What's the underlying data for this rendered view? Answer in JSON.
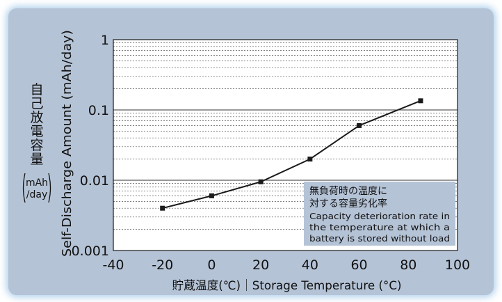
{
  "chart_data": {
    "type": "line",
    "xlabel": "貯蔵温度(℃)｜Storage Temperature (°C)",
    "ylabel_en": "Self-Discharge Amount (mAh/day)",
    "ylabel_jp": [
      "自",
      "己",
      "放",
      "電",
      "容",
      "量"
    ],
    "ylabel_unit": [
      "mAh",
      "/day"
    ],
    "xlim": [
      -40,
      100
    ],
    "ylim": [
      0.001,
      1
    ],
    "y_scale": "log",
    "x_ticks": [
      "-40",
      "-20",
      "0",
      "20",
      "40",
      "60",
      "80",
      "100"
    ],
    "y_ticks": [
      "0.001",
      "0.01",
      "0.1",
      "1"
    ],
    "grid": "log-y minor gridlines (dashed)",
    "series": [
      {
        "x": [
          -20,
          0,
          20,
          40,
          60,
          85
        ],
        "y": [
          0.004,
          0.006,
          0.0095,
          0.02,
          0.06,
          0.135
        ],
        "color": "#1a1a1a",
        "marker": "square"
      }
    ],
    "annotation": {
      "lines_jp": [
        "無負荷時の温度に",
        "対する容量劣化率"
      ],
      "lines_en": [
        "Capacity deterioration rate in",
        "the temperature at which a",
        "battery is stored without load"
      ],
      "background": "#b5c3d6"
    }
  }
}
